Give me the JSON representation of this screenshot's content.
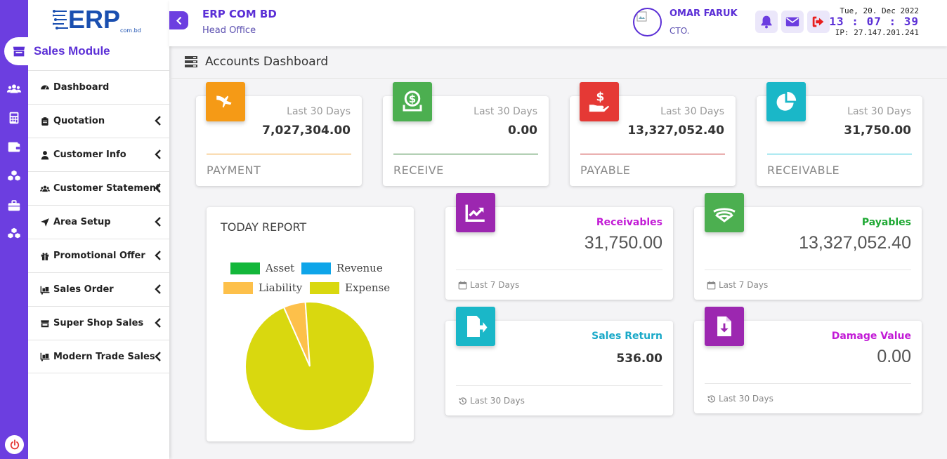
{
  "sidebar": {
    "module_label": "Sales Module",
    "logo_text": "ERP",
    "logo_sub": "com.bd",
    "items": [
      {
        "label": "Dashboard",
        "icon": "dashboard-icon",
        "has_submenu": false
      },
      {
        "label": "Quotation",
        "icon": "clipboard-icon",
        "has_submenu": true
      },
      {
        "label": "Customer Info",
        "icon": "user-tie-icon",
        "has_submenu": true
      },
      {
        "label": "Customer Statement",
        "icon": "users-icon",
        "has_submenu": true
      },
      {
        "label": "Area Setup",
        "icon": "location-arrow-icon",
        "has_submenu": true
      },
      {
        "label": "Promotional Offer",
        "icon": "gift-icon",
        "has_submenu": true
      },
      {
        "label": "Sales Order",
        "icon": "dolly-icon",
        "has_submenu": true
      },
      {
        "label": "Super Shop Sales",
        "icon": "store-icon",
        "has_submenu": true
      },
      {
        "label": "Modern Trade Sales",
        "icon": "dolly-icon",
        "has_submenu": true
      }
    ],
    "rail_icons": [
      "users-icon",
      "calculator-icon",
      "wallet-icon",
      "cubes-icon",
      "briefcase-icon",
      "cubes-icon"
    ]
  },
  "header": {
    "company_name": "ERP COM BD",
    "branch": "Head Office",
    "user_name": "OMAR FARUK",
    "user_role": "CTO.",
    "date": "Tue, 20. Dec 2022",
    "time": "13 : 07 : 39",
    "ip": "IP: 27.147.201.241"
  },
  "page": {
    "title": "Accounts Dashboard"
  },
  "stats": [
    {
      "period": "Last 30 Days",
      "value": "7,027,304.00",
      "label": "PAYMENT",
      "color": "#f59a16",
      "line_color": "#f0a030",
      "icon": "plane-icon"
    },
    {
      "period": "Last 30 Days",
      "value": "0.00",
      "label": "RECEIVE",
      "color": "#4caf50",
      "line_color": "#2e7d32",
      "icon": "money-receive-icon"
    },
    {
      "period": "Last 30 Days",
      "value": "13,327,052.40",
      "label": "PAYABLE",
      "color": "#e53935",
      "line_color": "#c62828",
      "icon": "hand-dollar-icon"
    },
    {
      "period": "Last 30 Days",
      "value": "31,750.00",
      "label": "RECEIVABLE",
      "color": "#1ab7c8",
      "line_color": "#26c6da",
      "icon": "pie-chart-icon"
    }
  ],
  "report": {
    "title": "TODAY REPORT",
    "legend": [
      {
        "name": "Asset",
        "color": "#13b73a"
      },
      {
        "name": "Revenue",
        "color": "#0ea5e9"
      },
      {
        "name": "Liability",
        "color": "#fdc04a"
      },
      {
        "name": "Expense",
        "color": "#d9d80f"
      }
    ]
  },
  "chart_data": {
    "type": "pie",
    "title": "TODAY REPORT",
    "labels": [
      "Asset",
      "Revenue",
      "Liability",
      "Expense"
    ],
    "values": [
      0,
      0,
      5.5,
      94.5
    ],
    "colors": [
      "#13b73a",
      "#0ea5e9",
      "#fdc04a",
      "#d9d80f"
    ],
    "legend_position": "top"
  },
  "metrics": [
    {
      "label": "Receivables",
      "label_color": "#c21bd6",
      "value": "31,750.00",
      "bold": false,
      "footer": "Last 7 Days",
      "footer_icon": "calendar-icon",
      "icon": "chart-line-icon",
      "icon_color": "#9c27b0"
    },
    {
      "label": "Payables",
      "label_color": "#1ea833",
      "value": "13,327,052.40",
      "bold": false,
      "footer": "Last 7 Days",
      "footer_icon": "calendar-icon",
      "icon": "wifi-icon",
      "icon_color": "#4caf50"
    },
    {
      "label": "Sales Return",
      "label_color": "#1aa9c8",
      "value": "536.00",
      "bold": true,
      "footer": "Last 30 Days",
      "footer_icon": "history-icon",
      "icon": "file-export-icon",
      "icon_color": "#1ab7c8"
    },
    {
      "label": "Damage Value",
      "label_color": "#c21bd6",
      "value": "0.00",
      "bold": false,
      "footer": "Last 30 Days",
      "footer_icon": "history-icon",
      "icon": "file-download-icon",
      "icon_color": "#9c27b0"
    }
  ]
}
